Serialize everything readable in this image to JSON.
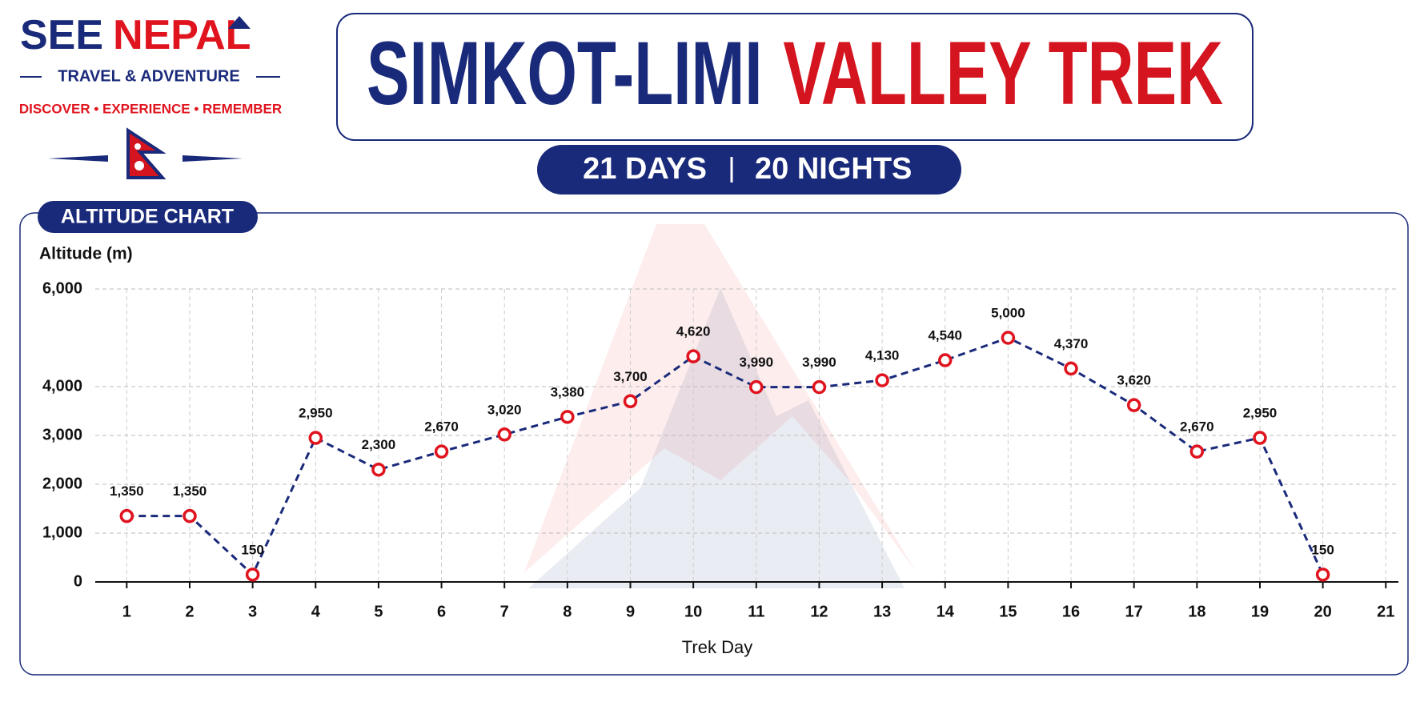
{
  "header": {
    "brand_part1": "SEE",
    "brand_part2": "NEPAL",
    "brand_sub": "TRAVEL & ADVENTURE",
    "motto": "DISCOVER • EXPERIENCE • REMEMBER",
    "title_part1": "SIMKOT-LIMI",
    "title_part2": "VALLEY TREK",
    "days": "21 DAYS",
    "nights": "20 NIGHTS"
  },
  "chart_data": {
    "type": "line",
    "panel_label": "ALTITUDE CHART",
    "y_label": "Altitude (m)",
    "x_label": "Trek Day",
    "x": [
      1,
      2,
      3,
      4,
      5,
      6,
      7,
      8,
      9,
      10,
      11,
      12,
      13,
      14,
      15,
      16,
      17,
      18,
      19,
      20
    ],
    "values": [
      1350,
      1350,
      150,
      2950,
      2300,
      2670,
      3020,
      3380,
      3700,
      4620,
      3990,
      3990,
      4130,
      4540,
      5000,
      4370,
      3620,
      2670,
      2950,
      150
    ],
    "value_labels": [
      "1,350",
      "1,350",
      "150",
      "2,950",
      "2,300",
      "2,670",
      "3,020",
      "3,380",
      "3,700",
      "4,620",
      "3,990",
      "3,990",
      "4,130",
      "4,540",
      "5,000",
      "4,370",
      "3,620",
      "2,670",
      "2,950",
      "150"
    ],
    "color": "#1a2a7a",
    "marker_color": "#e0141e",
    "xlim": [
      0.5,
      21.2
    ],
    "xticks": [
      1,
      2,
      3,
      4,
      5,
      6,
      7,
      8,
      9,
      10,
      11,
      12,
      13,
      14,
      15,
      16,
      17,
      18,
      19,
      20,
      21
    ],
    "ylim": [
      0,
      6000
    ],
    "yticks": [
      0,
      {
        "value": 1000,
        "label": "1,000"
      },
      {
        "value": 2000,
        "label": "2,000"
      },
      {
        "value": 3000,
        "label": "3,000"
      },
      {
        "value": 4000,
        "label": "4,000"
      },
      {
        "value": 6000,
        "label": "6,000"
      }
    ],
    "grid": true
  }
}
